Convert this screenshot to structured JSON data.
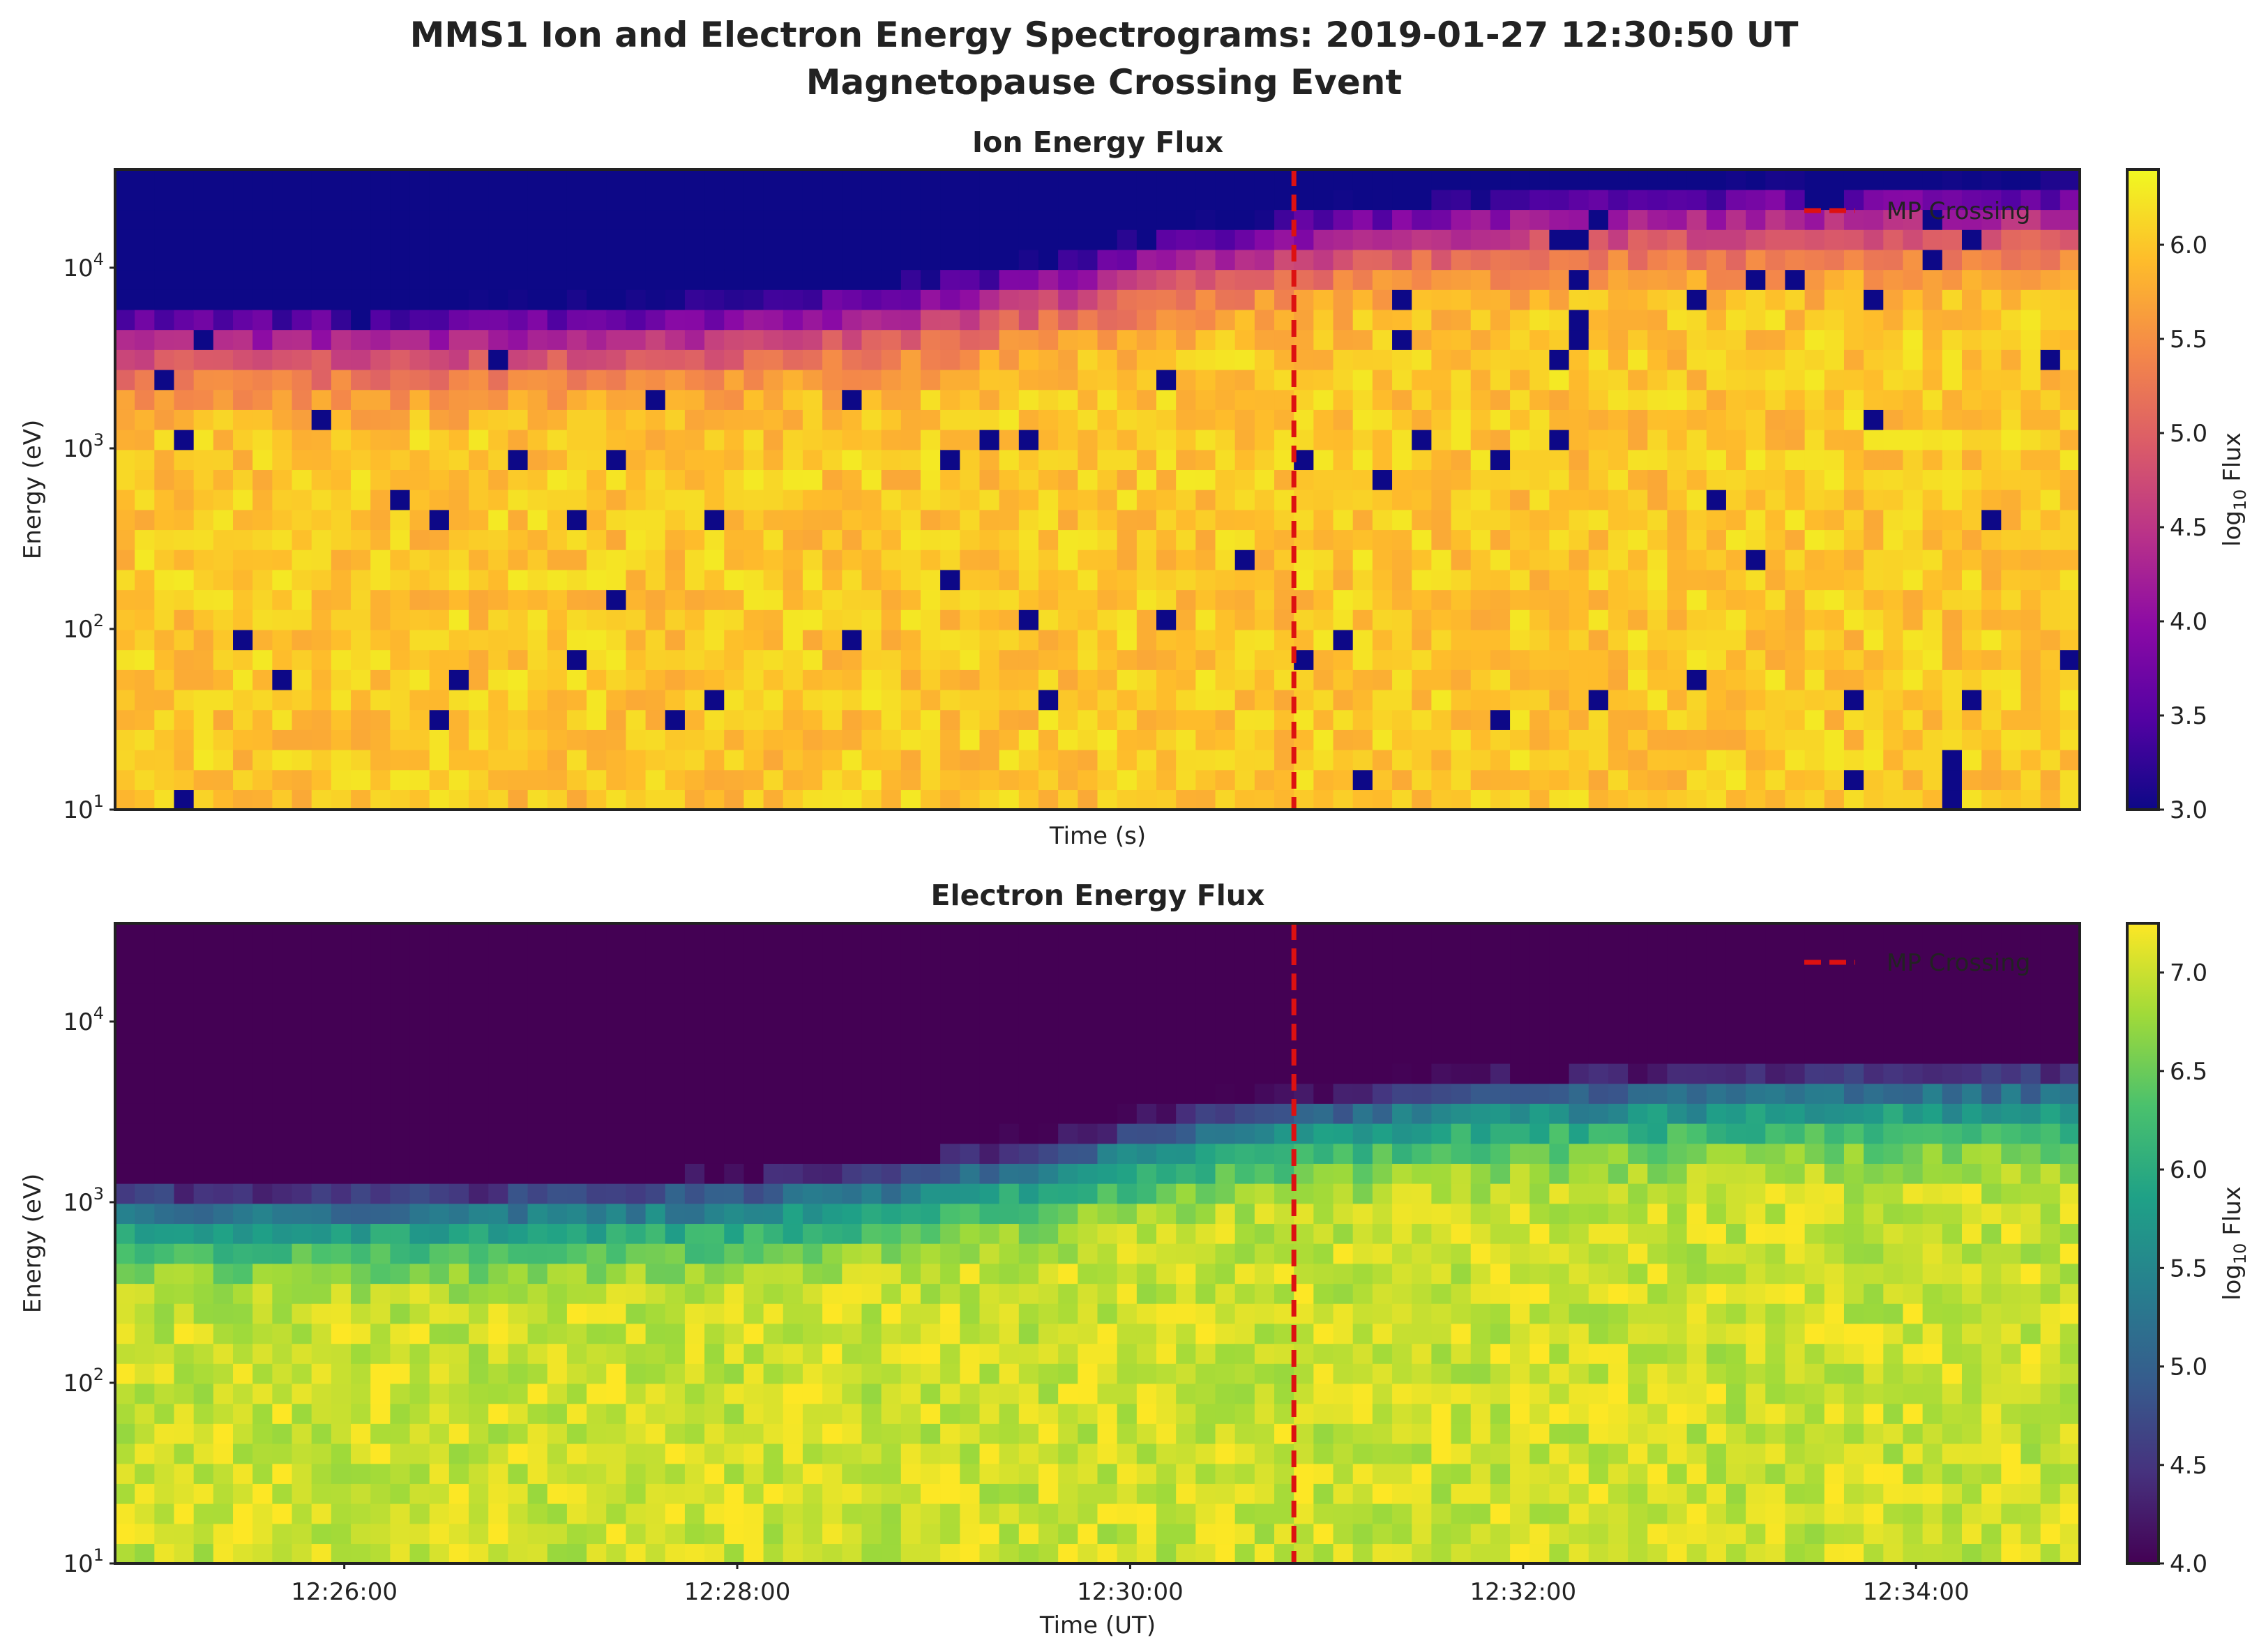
{
  "figure": {
    "title_line1": "MMS1 Ion and Electron Energy Spectrograms: 2019-01-27 12:30:50 UT",
    "title_line2": "Magnetopause Crossing Event"
  },
  "chart_data": [
    {
      "type": "heatmap",
      "title": "Ion Energy Flux",
      "xlabel": "Time (s)",
      "ylabel": "Energy (eV)",
      "y_scale": "log",
      "ylim": [
        10,
        35000
      ],
      "y_ticks": [
        {
          "value": 10,
          "base": "10",
          "exp": "1"
        },
        {
          "value": 100,
          "base": "10",
          "exp": "2"
        },
        {
          "value": 1000,
          "base": "10",
          "exp": "3"
        },
        {
          "value": 10000,
          "base": "10",
          "exp": "4"
        }
      ],
      "x_tick_labels_shown": false,
      "colormap": "plasma",
      "colorbar": {
        "label_prefix": "log",
        "label_sub": "10",
        "label_suffix": " Flux",
        "range": [
          3.0,
          6.4
        ],
        "ticks": [
          "3.0",
          "3.5",
          "4.0",
          "4.5",
          "5.0",
          "5.5",
          "6.0"
        ],
        "tick_values": [
          3.0,
          3.5,
          4.0,
          4.5,
          5.0,
          5.5,
          6.0
        ]
      },
      "background_value": 3.0,
      "peak_value": 6.0,
      "cutoff_energy_before_eV": 6000,
      "cutoff_energy_after_eV": 30000,
      "mp_crossing_time": "12:30:50",
      "legend": {
        "label": "MP Crossing",
        "position": "upper right"
      },
      "crossing_line_color": "#dd1111",
      "seed": 17
    },
    {
      "type": "heatmap",
      "title": "Electron Energy Flux",
      "xlabel": "Time (UT)",
      "ylabel": "Energy (eV)",
      "y_scale": "log",
      "ylim": [
        10,
        35000
      ],
      "y_ticks": [
        {
          "value": 10,
          "base": "10",
          "exp": "1"
        },
        {
          "value": 100,
          "base": "10",
          "exp": "2"
        },
        {
          "value": 1000,
          "base": "10",
          "exp": "3"
        },
        {
          "value": 10000,
          "base": "10",
          "exp": "4"
        }
      ],
      "x_tick_labels_shown": true,
      "colormap": "viridis",
      "colorbar": {
        "label_prefix": "log",
        "label_sub": "10",
        "label_suffix": " Flux",
        "range": [
          4.0,
          7.25
        ],
        "ticks": [
          "4.0",
          "4.5",
          "5.0",
          "5.5",
          "6.0",
          "6.5",
          "7.0"
        ],
        "tick_values": [
          4.0,
          4.5,
          5.0,
          5.5,
          6.0,
          6.5,
          7.0
        ]
      },
      "background_value": 4.0,
      "peak_value": 7.0,
      "cutoff_energy_before_eV": 1300,
      "cutoff_energy_after_eV": 6000,
      "mp_crossing_time": "12:30:50",
      "legend": {
        "label": "MP Crossing",
        "position": "upper right"
      },
      "crossing_line_color": "#dd1111",
      "seed": 41
    }
  ],
  "time_axis": {
    "start": "12:24:50",
    "end": "12:34:50",
    "n_bins": 100,
    "n_energy_bins": 32,
    "tick_times": [
      "12:26:00",
      "12:28:00",
      "12:30:00",
      "12:32:00",
      "12:34:00"
    ],
    "tick_labels": [
      "12:26:00",
      "12:28:00",
      "12:30:00",
      "12:32:00",
      "12:34:00"
    ]
  }
}
